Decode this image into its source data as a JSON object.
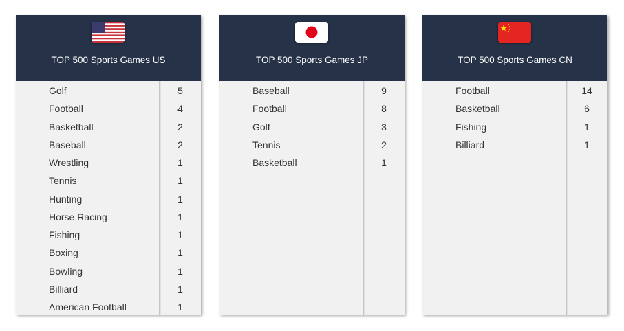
{
  "panels": [
    {
      "title": "TOP 500 Sports Games US",
      "rows": [
        [
          "Golf",
          "5"
        ],
        [
          "Football",
          "4"
        ],
        [
          "Basketball",
          "2"
        ],
        [
          "Baseball",
          "2"
        ],
        [
          "Wrestling",
          "1"
        ],
        [
          "Tennis",
          "1"
        ],
        [
          "Hunting",
          "1"
        ],
        [
          "Horse Racing",
          "1"
        ],
        [
          "Fishing",
          "1"
        ],
        [
          "Boxing",
          "1"
        ],
        [
          "Bowling",
          "1"
        ],
        [
          "Billiard",
          "1"
        ],
        [
          "American Football",
          "1"
        ]
      ]
    },
    {
      "title": "TOP 500 Sports Games JP",
      "rows": [
        [
          "Baseball",
          "9"
        ],
        [
          "Football",
          "8"
        ],
        [
          "Golf",
          "3"
        ],
        [
          "Tennis",
          "2"
        ],
        [
          "Basketball",
          "1"
        ]
      ]
    },
    {
      "title": "TOP 500 Sports Games CN",
      "rows": [
        [
          "Football",
          "14"
        ],
        [
          "Basketball",
          "6"
        ],
        [
          "Fishing",
          "1"
        ],
        [
          "Billiard",
          "1"
        ]
      ]
    }
  ]
}
